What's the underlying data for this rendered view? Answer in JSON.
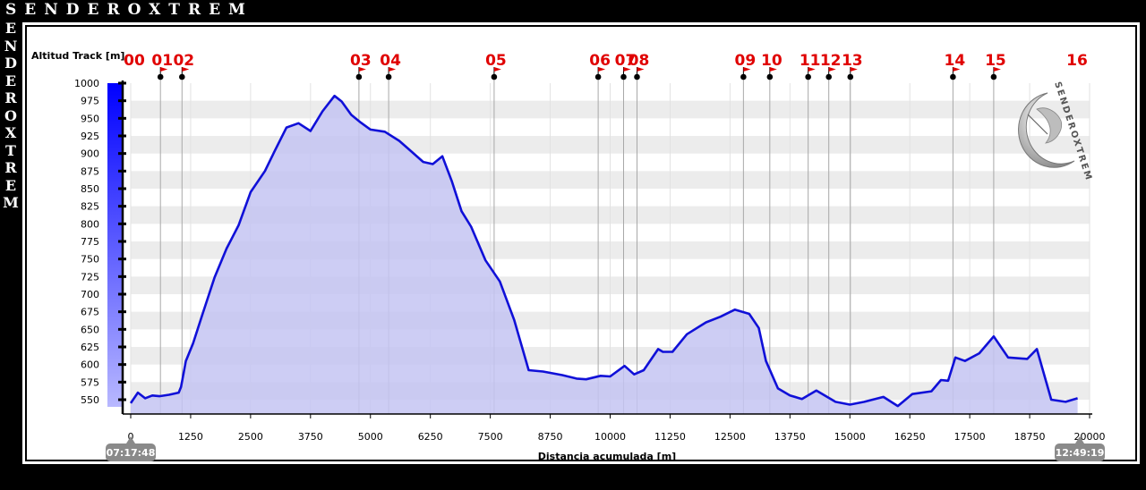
{
  "brand": {
    "top": "SENDEROXTREM",
    "side": [
      "E",
      "N",
      "D",
      "E",
      "R",
      "O",
      "X",
      "T",
      "R",
      "E",
      "M"
    ],
    "logo_text": "SENDEROXTREM"
  },
  "times": {
    "start": "07:17:48",
    "end": "12:49:19"
  },
  "chart_data": {
    "type": "area",
    "ylabel": "Altitud Track [m]",
    "xlabel": "Distancia acumulada [m]",
    "xlim": [
      0,
      20000
    ],
    "ylim": [
      540,
      1000
    ],
    "x_ticks": [
      "0",
      "1250",
      "2500",
      "3750",
      "5000",
      "6250",
      "7500",
      "8750",
      "10000",
      "11250",
      "12500",
      "13750",
      "15000",
      "16250",
      "17500",
      "18750",
      "20000"
    ],
    "y_ticks": [
      "550",
      "575",
      "600",
      "625",
      "650",
      "675",
      "700",
      "725",
      "750",
      "775",
      "800",
      "825",
      "850",
      "875",
      "900",
      "925",
      "950",
      "975",
      "1000"
    ],
    "grid": "horizontal bands",
    "series_color": "#1010d8",
    "fill_color": "#c4c4f2",
    "waypoints": [
      {
        "label": "00",
        "x": 0
      },
      {
        "label": "01",
        "x": 620
      },
      {
        "label": "02",
        "x": 1070
      },
      {
        "label": "03",
        "x": 4760
      },
      {
        "label": "04",
        "x": 5380
      },
      {
        "label": "05",
        "x": 7580
      },
      {
        "label": "06",
        "x": 9750
      },
      {
        "label": "07",
        "x": 10280
      },
      {
        "label": "08",
        "x": 10560
      },
      {
        "label": "09",
        "x": 12780
      },
      {
        "label": "10",
        "x": 13330
      },
      {
        "label": "11",
        "x": 14130
      },
      {
        "label": "12",
        "x": 14560
      },
      {
        "label": "13",
        "x": 15010
      },
      {
        "label": "14",
        "x": 17150
      },
      {
        "label": "15",
        "x": 18000
      },
      {
        "label": "16",
        "x": 19750
      }
    ],
    "x": [
      0,
      150,
      300,
      450,
      600,
      800,
      1000,
      1050,
      1150,
      1300,
      1500,
      1750,
      2000,
      2250,
      2500,
      2800,
      3000,
      3250,
      3500,
      3750,
      4000,
      4250,
      4400,
      4600,
      4800,
      5000,
      5300,
      5600,
      5800,
      6100,
      6300,
      6500,
      6700,
      6900,
      7100,
      7400,
      7700,
      8000,
      8300,
      8600,
      9000,
      9300,
      9500,
      9800,
      10000,
      10300,
      10500,
      10700,
      11000,
      11100,
      11300,
      11600,
      12000,
      12300,
      12600,
      12900,
      13100,
      13250,
      13500,
      13750,
      14000,
      14300,
      14700,
      15000,
      15300,
      15700,
      16000,
      16300,
      16700,
      16900,
      17050,
      17200,
      17400,
      17700,
      18000,
      18300,
      18700,
      18900,
      19200,
      19500,
      19750
    ],
    "y": [
      545,
      560,
      552,
      556,
      555,
      557,
      560,
      568,
      605,
      630,
      672,
      724,
      765,
      798,
      845,
      875,
      903,
      937,
      943,
      932,
      960,
      982,
      974,
      955,
      944,
      934,
      931,
      918,
      906,
      888,
      885,
      896,
      860,
      818,
      796,
      748,
      718,
      663,
      592,
      590,
      585,
      580,
      579,
      584,
      583,
      598,
      586,
      592,
      622,
      618,
      618,
      643,
      660,
      668,
      678,
      672,
      652,
      605,
      566,
      556,
      551,
      563,
      547,
      543,
      547,
      554,
      541,
      558,
      562,
      578,
      577,
      610,
      605,
      616,
      640,
      610,
      608,
      622,
      550,
      547,
      552
    ]
  }
}
